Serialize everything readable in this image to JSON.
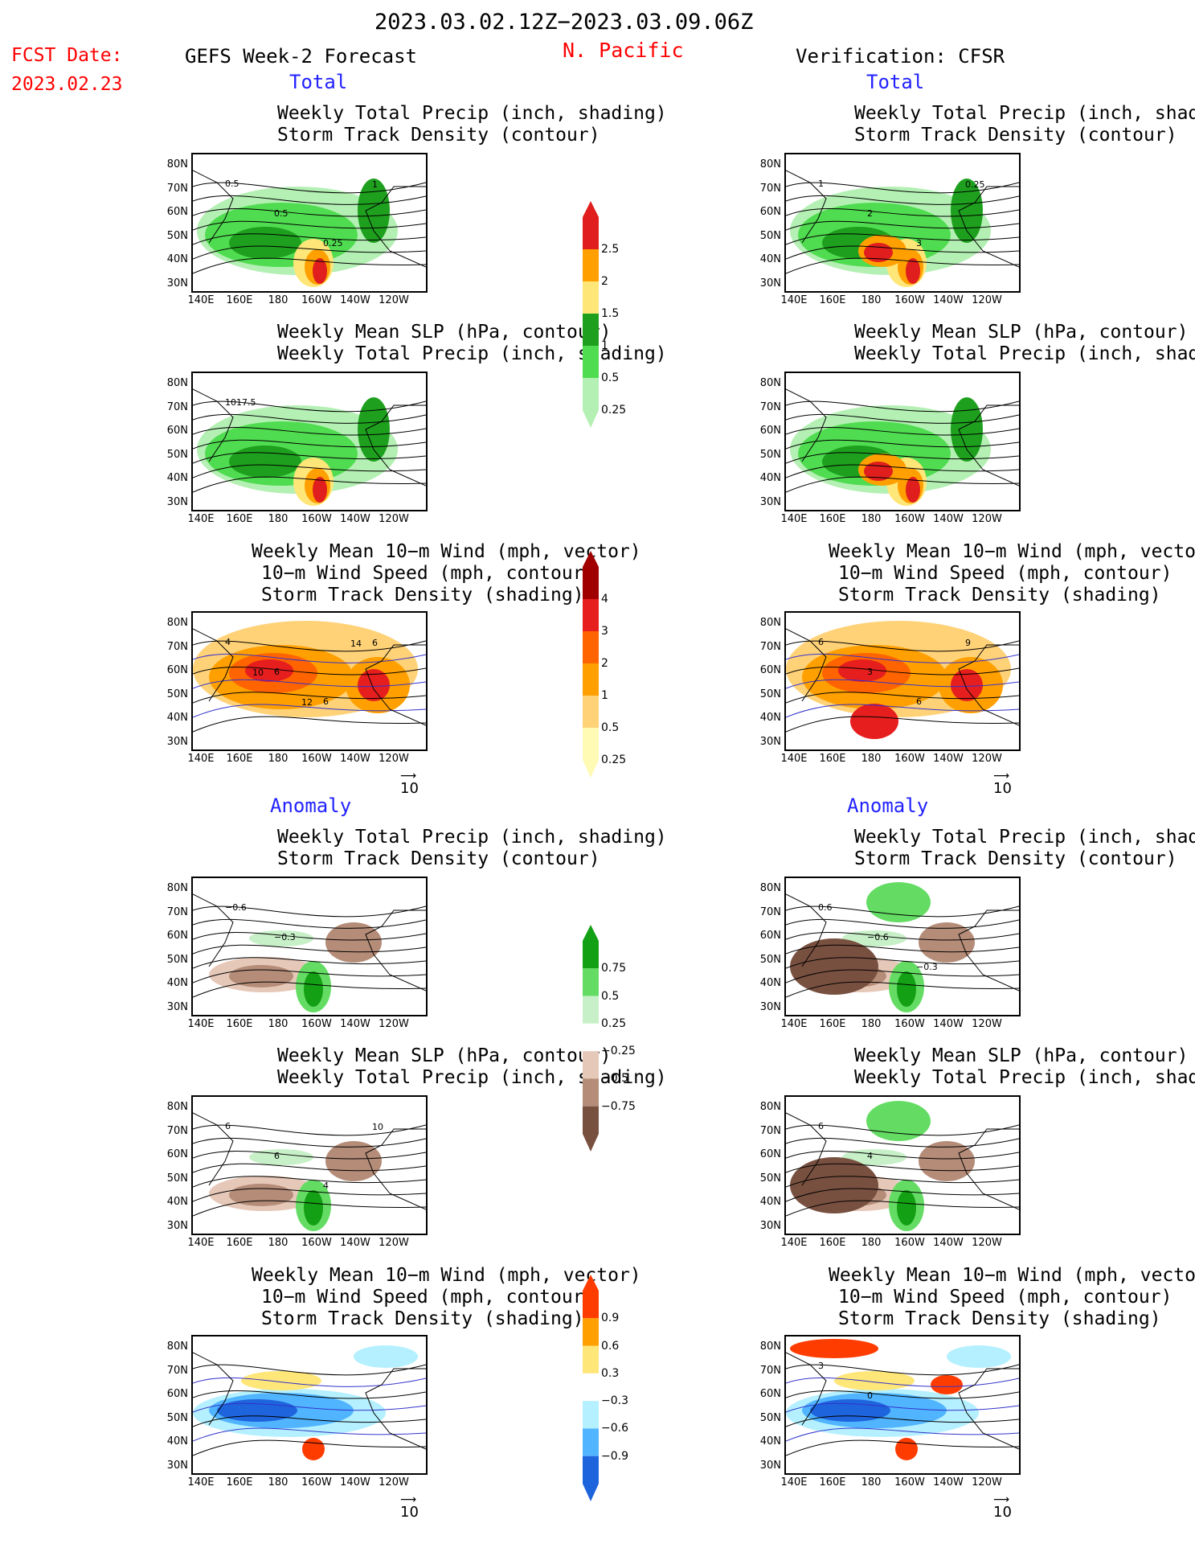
{
  "header": {
    "period": "2023.03.02.12Z−2023.03.09.06Z",
    "region": "N. Pacific",
    "fcst_label": "FCST Date:",
    "fcst_date": "2023.02.23",
    "left_title": "GEFS Week-2 Forecast",
    "right_title": "Verification: CFSR"
  },
  "sections": {
    "total": "Total",
    "anomaly": "Anomaly"
  },
  "panel_titles": {
    "precip_storm": [
      "Weekly Total Precip (inch, shading)",
      "Storm Track Density (contour)"
    ],
    "slp_precip": [
      "Weekly Mean SLP (hPa, contour)",
      "Weekly Total Precip (inch, shading)"
    ],
    "wind": [
      "Weekly Mean 10−m Wind (mph, vector)",
      "10−m Wind Speed (mph, contour)",
      "Storm Track Density (shading)"
    ]
  },
  "axes": {
    "lat_labels": [
      "80N",
      "70N",
      "60N",
      "50N",
      "40N",
      "30N"
    ],
    "lon_labels": [
      "140E",
      "160E",
      "180",
      "160W",
      "140W",
      "120W"
    ]
  },
  "vector_ref": "10",
  "colorbars": {
    "precip_total": [
      "0.25",
      "0.5",
      "1",
      "1.5",
      "2",
      "2.5"
    ],
    "storm_total": [
      "0.25",
      "0.5",
      "1",
      "2",
      "3",
      "4"
    ],
    "precip_anom": [
      "0.75",
      "0.5",
      "0.25",
      "−0.25",
      "−0.5",
      "−0.75"
    ],
    "storm_anom": [
      "0.9",
      "0.6",
      "0.3",
      "−0.3",
      "−0.6",
      "−0.9"
    ]
  },
  "contour_labels": {
    "p1_left": [
      "0.5",
      "0.5",
      "0.25",
      "1"
    ],
    "p1_right": [
      "1",
      "2",
      "3",
      "0.25"
    ],
    "p2_left": [
      "1017.5"
    ],
    "p3_left": [
      "4",
      "6",
      "6",
      "6",
      "10",
      "12",
      "14"
    ],
    "p3_right": [
      "6",
      "3",
      "6",
      "9"
    ],
    "p4_left": [
      "−0.6",
      "−0.3"
    ],
    "p4_right": [
      "0.6",
      "−0.6",
      "−0.3"
    ],
    "p5_left": [
      "6",
      "6",
      "4",
      "10"
    ],
    "p5_right": [
      "6",
      "4"
    ],
    "p6_right": [
      "3",
      "0"
    ]
  },
  "colors": {
    "precip": [
      "#b4f0b4",
      "#50dc50",
      "#1ea01e",
      "#ffe678",
      "#ffa000",
      "#e11e1e"
    ],
    "storm": [
      "#fffab4",
      "#ffd278",
      "#ffa000",
      "#ff6400",
      "#e61e1e",
      "#a00000"
    ],
    "anom_precip_pos": [
      "#c8f0c8",
      "#64dc64",
      "#14a014"
    ],
    "anom_precip_neg": [
      "#e6c8b9",
      "#b48c78",
      "#785040"
    ],
    "anom_storm_pos": [
      "#ffe678",
      "#ffa000",
      "#ff3c00"
    ],
    "anom_storm_neg": [
      "#b4f0ff",
      "#50b4ff",
      "#1e64dc"
    ]
  }
}
